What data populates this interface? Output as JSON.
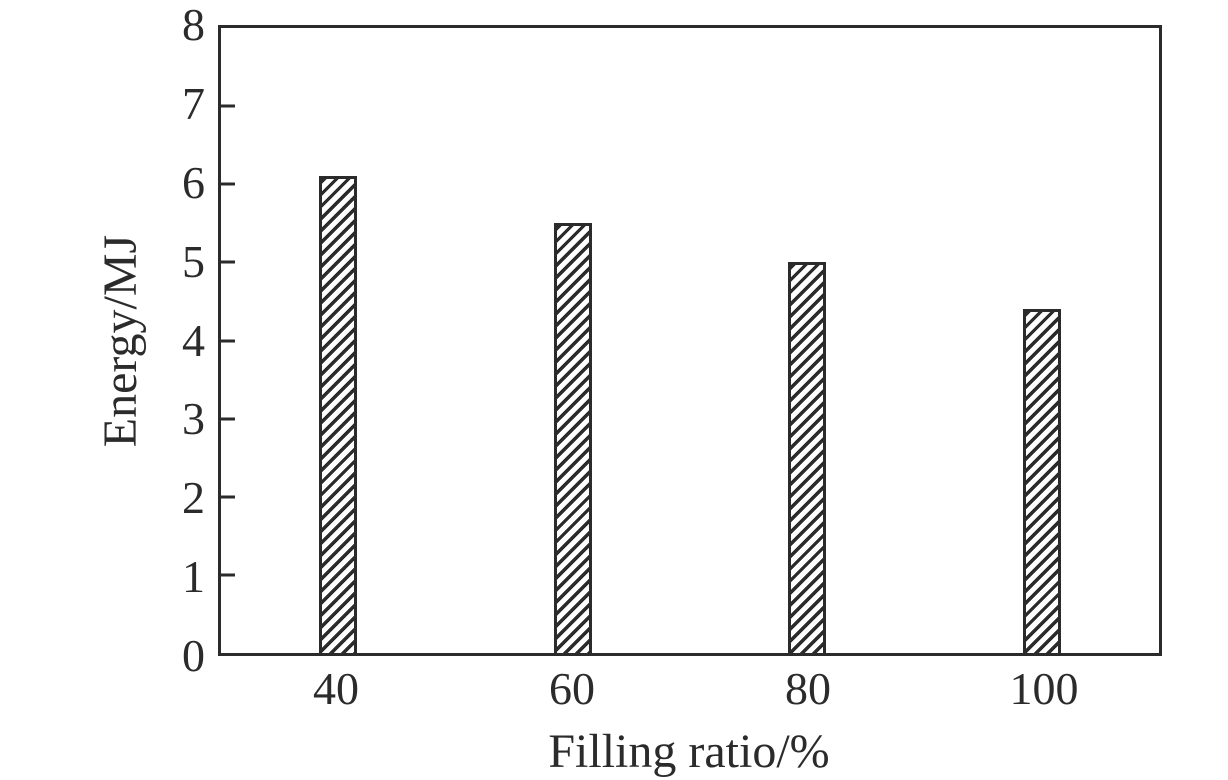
{
  "figure": {
    "background": "#ffffff",
    "ink_color": "#2b2b2b"
  },
  "chart_data": {
    "type": "bar",
    "title": "",
    "xlabel": "Filling ratio/%",
    "ylabel": "Energy/MJ",
    "categories": [
      "40",
      "60",
      "80",
      "100"
    ],
    "values": [
      6.1,
      5.5,
      5.0,
      4.4
    ],
    "ylim": [
      0,
      8
    ],
    "yticks": [
      0,
      1,
      2,
      3,
      4,
      5,
      6,
      7,
      8
    ],
    "grid": false,
    "legend": false,
    "bar_style": "diagonal-hatch",
    "bar_color": "#2b2b2b"
  }
}
